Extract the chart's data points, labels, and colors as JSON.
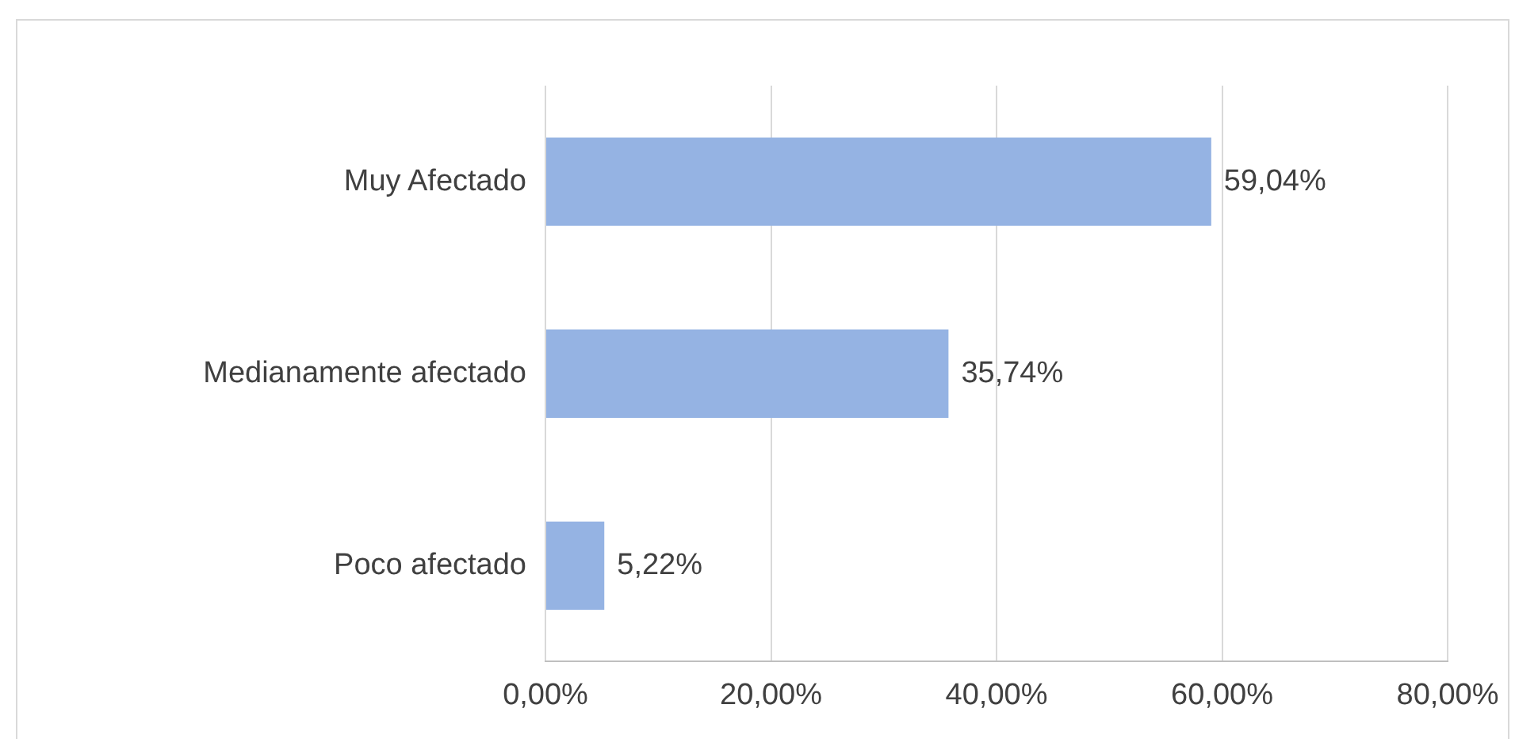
{
  "chart_data": {
    "type": "bar",
    "orientation": "horizontal",
    "categories": [
      "Muy Afectado",
      "Medianamente afectado",
      "Poco afectado"
    ],
    "values": [
      59.04,
      35.74,
      5.22
    ],
    "value_labels": [
      "59,04%",
      "35,74%",
      "5,22%"
    ],
    "color": "#95b3e3",
    "xlim": [
      0,
      80
    ],
    "xticks": [
      {
        "value": 0,
        "label": "0,00%"
      },
      {
        "value": 20,
        "label": "20,00%"
      },
      {
        "value": 40,
        "label": "40,00%"
      },
      {
        "value": 60,
        "label": "60,00%"
      },
      {
        "value": 80,
        "label": "80,00%"
      }
    ],
    "grid": "x"
  }
}
